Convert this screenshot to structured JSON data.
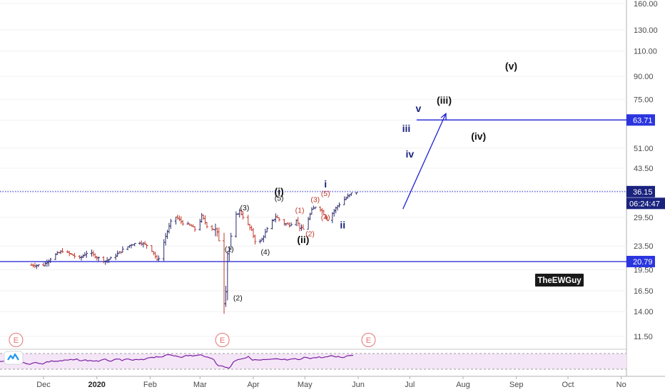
{
  "chart_data": {
    "type": "ohlc",
    "watermark": "TheEWGuy",
    "colors": {
      "up": "#2b2b6e",
      "down": "#c0392b",
      "line_blue": "#1f1fd6",
      "tag_blue": "#2a35e0",
      "tag_navy": "#1a237e",
      "grid": "#f0f0f0",
      "rsi": "#7b1fa2",
      "rsi_fill": "#f3e5f5",
      "earnings": "#e57373"
    },
    "price_axis": {
      "scale": "log",
      "ticks": [
        160.0,
        130.0,
        110.0,
        90.0,
        75.0,
        63.5,
        51.0,
        43.5,
        36.5,
        29.5,
        23.5,
        19.5,
        16.5,
        14.0,
        11.5
      ],
      "tick_labels": [
        "160.00",
        "130.00",
        "110.00",
        "90.00",
        "75.00",
        "63.50",
        "51.00",
        "43.50",
        "36.50",
        "29.50",
        "23.50",
        "19.50",
        "16.50",
        "14.00",
        "11.50"
      ]
    },
    "time_axis": {
      "labels": [
        "Dec",
        "2020",
        "Feb",
        "Mar",
        "Apr",
        "May",
        "Jun",
        "Jul",
        "Aug",
        "Sep",
        "Oct",
        "No"
      ],
      "bold": [
        "2020"
      ]
    },
    "horizontal_lines": [
      {
        "price": 63.71,
        "label": "63.71",
        "style": "solid",
        "start_date": "Jul"
      },
      {
        "price": 36.15,
        "label": "36.15",
        "style": "dotted"
      },
      {
        "price": 20.79,
        "label": "20.79",
        "style": "solid"
      }
    ],
    "countdown": "06:24:47",
    "wave_labels": [
      {
        "text": "(1)",
        "date": "Mar 18",
        "price": 22.5,
        "color": "black",
        "size": "small"
      },
      {
        "text": "(2)",
        "date": "Mar 23",
        "price": 15.3,
        "color": "black",
        "size": "small"
      },
      {
        "text": "(3)",
        "date": "Mar 27",
        "price": 31.2,
        "color": "black",
        "size": "small"
      },
      {
        "text": "(4)",
        "date": "Apr 8",
        "price": 22.0,
        "color": "black",
        "size": "small"
      },
      {
        "text": "(5)",
        "date": "Apr 16",
        "price": 33.7,
        "color": "black",
        "size": "small"
      },
      {
        "text": "(i)",
        "date": "Apr 16",
        "price": 35.2,
        "color": "black",
        "size": "large"
      },
      {
        "text": "(ii)",
        "date": "Apr 30",
        "price": 24.1,
        "color": "black",
        "size": "large"
      },
      {
        "text": "(1)",
        "date": "Apr 28",
        "price": 30.6,
        "color": "red",
        "size": "small"
      },
      {
        "text": "(2)",
        "date": "May 4",
        "price": 25.4,
        "color": "red",
        "size": "small"
      },
      {
        "text": "(3)",
        "date": "May 7",
        "price": 33.3,
        "color": "red",
        "size": "small"
      },
      {
        "text": "(4)",
        "date": "May 13",
        "price": 28.9,
        "color": "red",
        "size": "small"
      },
      {
        "text": "(5)",
        "date": "May 13",
        "price": 34.9,
        "color": "red",
        "size": "small"
      },
      {
        "text": "i",
        "date": "May 13",
        "price": 37.4,
        "color": "navy",
        "size": "large"
      },
      {
        "text": "ii",
        "date": "May 23",
        "price": 27.0,
        "color": "navy",
        "size": "large"
      },
      {
        "text": "iii",
        "date": "Jun 29",
        "price": 58.0,
        "color": "navy",
        "size": "large"
      },
      {
        "text": "iv",
        "date": "Jul 1",
        "price": 47.3,
        "color": "navy",
        "size": "large"
      },
      {
        "text": "v",
        "date": "Jul 6",
        "price": 68.0,
        "color": "navy",
        "size": "large"
      },
      {
        "text": "(iii)",
        "date": "Jul 21",
        "price": 72.5,
        "color": "black",
        "size": "large"
      },
      {
        "text": "(iv)",
        "date": "Aug 10",
        "price": 54.5,
        "color": "black",
        "size": "large"
      },
      {
        "text": "(v)",
        "date": "Aug 29",
        "price": 95.0,
        "color": "black",
        "size": "large"
      }
    ],
    "projection_arrow": {
      "from": {
        "date": "Jun 27",
        "price": 31.5
      },
      "to": {
        "date": "Jul 22",
        "price": 67.0
      }
    },
    "earnings_markers": [
      {
        "label": "E",
        "date": "Nov 15"
      },
      {
        "label": "E",
        "date": "Mar 14"
      },
      {
        "label": "E",
        "date": "Jun 7"
      }
    ]
  }
}
